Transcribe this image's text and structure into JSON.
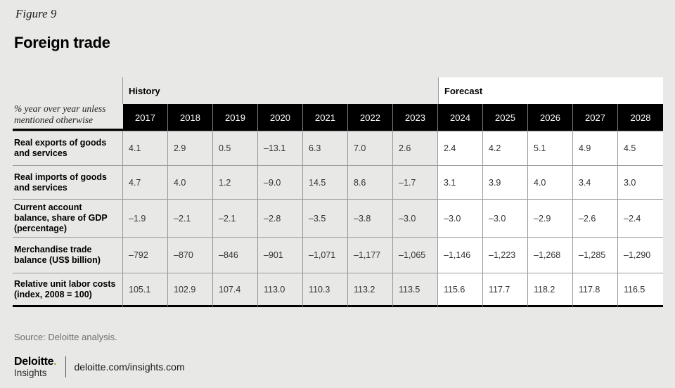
{
  "page": {
    "figure_label": "Figure 9",
    "title": "Foreign trade",
    "source": "Source: Deloitte analysis.",
    "background_color": "#e8e8e6"
  },
  "table": {
    "corner_note": "% year over year unless mentioned otherwise",
    "history_label": "History",
    "forecast_label": "Forecast",
    "history_years": [
      "2017",
      "2018",
      "2019",
      "2020",
      "2021",
      "2022",
      "2023"
    ],
    "forecast_years": [
      "2024",
      "2025",
      "2026",
      "2027",
      "2028"
    ],
    "rows": [
      {
        "label": "Real exports of goods and services",
        "values": [
          "4.1",
          "2.9",
          "0.5",
          "–13.1",
          "6.3",
          "7.0",
          "2.6",
          "2.4",
          "4.2",
          "5.1",
          "4.9",
          "4.5"
        ]
      },
      {
        "label": "Real imports of goods and services",
        "values": [
          "4.7",
          "4.0",
          "1.2",
          "–9.0",
          "14.5",
          "8.6",
          "–1.7",
          "3.1",
          "3.9",
          "4.0",
          "3.4",
          "3.0"
        ]
      },
      {
        "label": "Current account balance, share of GDP (percentage)",
        "values": [
          "–1.9",
          "–2.1",
          "–2.1",
          "–2.8",
          "–3.5",
          "–3.8",
          "–3.0",
          "–3.0",
          "–3.0",
          "–2.9",
          "–2.6",
          "–2.4"
        ]
      },
      {
        "label": "Merchandise trade balance (US$ billion)",
        "values": [
          "–792",
          "–870",
          "–846",
          "–901",
          "–1,071",
          "–1,177",
          "–1,065",
          "–1,146",
          "–1,223",
          "–1,268",
          "–1,285",
          "–1,290"
        ]
      },
      {
        "label": "Relative unit labor costs (index, 2008 = 100)",
        "values": [
          "105.1",
          "102.9",
          "107.4",
          "113.0",
          "110.3",
          "113.2",
          "113.5",
          "115.6",
          "117.7",
          "118.2",
          "117.8",
          "116.5"
        ]
      }
    ]
  },
  "footer": {
    "logo_word": "Deloitte",
    "logo_dot": ".",
    "logo_sub": "Insights",
    "url": "deloitte.com/insights.com"
  },
  "colors": {
    "accent_green": "#86bc25",
    "header_black": "#000000",
    "grid_gray": "#9b9b9b",
    "forecast_white": "#ffffff",
    "page_gray": "#e8e8e6"
  },
  "chart_data": {
    "type": "table",
    "title": "Foreign trade",
    "unit_note": "% year over year unless mentioned otherwise",
    "columns": [
      "2017",
      "2018",
      "2019",
      "2020",
      "2021",
      "2022",
      "2023",
      "2024",
      "2025",
      "2026",
      "2027",
      "2028"
    ],
    "history_columns": [
      "2017",
      "2018",
      "2019",
      "2020",
      "2021",
      "2022",
      "2023"
    ],
    "forecast_columns": [
      "2024",
      "2025",
      "2026",
      "2027",
      "2028"
    ],
    "rows": [
      {
        "label": "Real exports of goods and services",
        "values": [
          4.1,
          2.9,
          0.5,
          -13.1,
          6.3,
          7.0,
          2.6,
          2.4,
          4.2,
          5.1,
          4.9,
          4.5
        ]
      },
      {
        "label": "Real imports of goods and services",
        "values": [
          4.7,
          4.0,
          1.2,
          -9.0,
          14.5,
          8.6,
          -1.7,
          3.1,
          3.9,
          4.0,
          3.4,
          3.0
        ]
      },
      {
        "label": "Current account balance, share of GDP (percentage)",
        "values": [
          -1.9,
          -2.1,
          -2.1,
          -2.8,
          -3.5,
          -3.8,
          -3.0,
          -3.0,
          -3.0,
          -2.9,
          -2.6,
          -2.4
        ]
      },
      {
        "label": "Merchandise trade balance (US$ billion)",
        "values": [
          -792,
          -870,
          -846,
          -901,
          -1071,
          -1177,
          -1065,
          -1146,
          -1223,
          -1268,
          -1285,
          -1290
        ]
      },
      {
        "label": "Relative unit labor costs (index, 2008 = 100)",
        "values": [
          105.1,
          102.9,
          107.4,
          113.0,
          110.3,
          113.2,
          113.5,
          115.6,
          117.7,
          118.2,
          117.8,
          116.5
        ]
      }
    ]
  }
}
